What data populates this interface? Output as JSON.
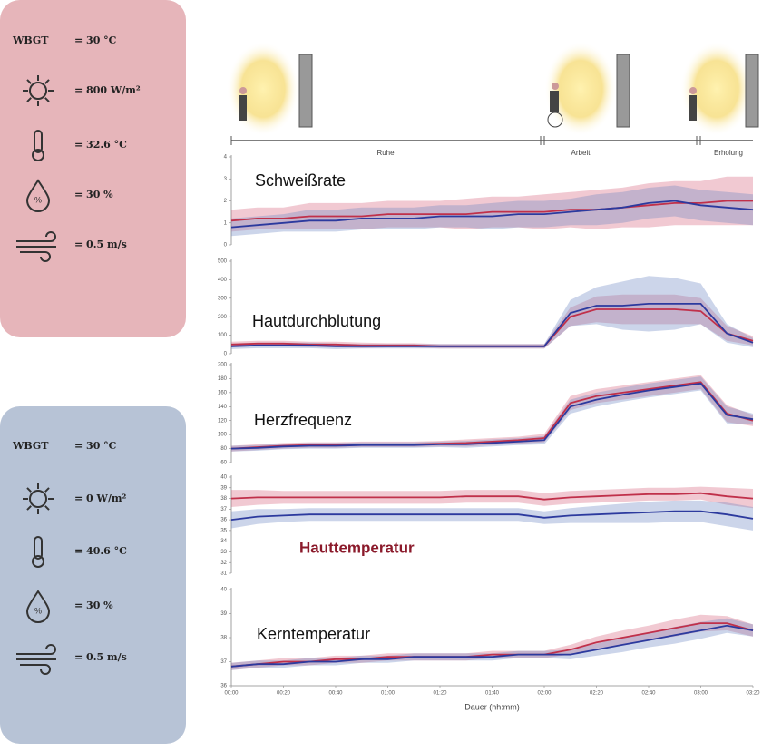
{
  "conditions": [
    {
      "rows": [
        {
          "label": "WBGT",
          "value": "= 30 °C"
        },
        {
          "value": "= 800 W/m²"
        },
        {
          "value": "= 32.6 °C"
        },
        {
          "value": "= 30 %"
        },
        {
          "value": "= 0.5 m/s"
        }
      ]
    },
    {
      "rows": [
        {
          "label": "WBGT",
          "value": "= 30 °C"
        },
        {
          "value": "= 0 W/m²"
        },
        {
          "value": "= 40.6 °C"
        },
        {
          "value": "= 30 %"
        },
        {
          "value": "= 0.5 m/s"
        }
      ]
    }
  ],
  "timeline": {
    "phases": [
      "Ruhe",
      "Arbeit",
      "Erholung"
    ]
  },
  "chart_data": [
    {
      "type": "line",
      "title": "Schweißrate",
      "x": [
        0,
        10,
        20,
        30,
        40,
        50,
        60,
        70,
        80,
        90,
        100,
        110,
        120,
        130,
        140,
        150,
        160,
        170,
        180,
        190,
        200
      ],
      "xlim": [
        0,
        200
      ],
      "ylim": [
        0,
        4
      ],
      "yticks": [
        0,
        1,
        2,
        3,
        4
      ],
      "series": [
        {
          "color": "#c0304a",
          "band_color": "rgba(214,100,125,0.35)",
          "values": [
            1.1,
            1.2,
            1.2,
            1.3,
            1.3,
            1.3,
            1.4,
            1.4,
            1.4,
            1.4,
            1.5,
            1.5,
            1.5,
            1.6,
            1.6,
            1.7,
            1.8,
            1.9,
            1.9,
            2.0,
            2.0
          ],
          "sd": [
            0.5,
            0.5,
            0.5,
            0.6,
            0.6,
            0.6,
            0.6,
            0.6,
            0.6,
            0.7,
            0.7,
            0.7,
            0.8,
            0.8,
            0.9,
            0.9,
            1.0,
            1.0,
            1.0,
            1.1,
            1.1
          ]
        },
        {
          "color": "#2c3a9e",
          "band_color": "rgba(110,135,195,0.35)",
          "values": [
            0.8,
            0.9,
            1.0,
            1.1,
            1.1,
            1.2,
            1.2,
            1.2,
            1.3,
            1.3,
            1.3,
            1.4,
            1.4,
            1.5,
            1.6,
            1.7,
            1.9,
            2.0,
            1.8,
            1.7,
            1.6
          ],
          "sd": [
            0.4,
            0.4,
            0.4,
            0.5,
            0.5,
            0.5,
            0.5,
            0.5,
            0.5,
            0.5,
            0.6,
            0.6,
            0.6,
            0.6,
            0.7,
            0.7,
            0.7,
            0.7,
            0.7,
            0.7,
            0.7
          ]
        }
      ]
    },
    {
      "type": "line",
      "title": "Hautdurchblutung",
      "x": [
        0,
        10,
        20,
        30,
        40,
        50,
        60,
        70,
        80,
        90,
        100,
        110,
        120,
        130,
        140,
        150,
        160,
        170,
        180,
        190,
        200
      ],
      "xlim": [
        0,
        200
      ],
      "ylim": [
        0,
        500
      ],
      "yticks": [
        0,
        100,
        200,
        300,
        400,
        500
      ],
      "series": [
        {
          "color": "#c0304a",
          "band_color": "rgba(214,100,125,0.35)",
          "values": [
            50,
            55,
            55,
            50,
            50,
            45,
            45,
            45,
            40,
            40,
            40,
            40,
            40,
            200,
            240,
            240,
            240,
            240,
            230,
            110,
            70
          ],
          "sd": [
            15,
            15,
            15,
            15,
            15,
            15,
            12,
            12,
            12,
            12,
            12,
            12,
            12,
            50,
            70,
            80,
            80,
            80,
            70,
            40,
            25
          ]
        },
        {
          "color": "#2c3a9e",
          "band_color": "rgba(110,135,195,0.35)",
          "values": [
            40,
            45,
            45,
            45,
            40,
            40,
            40,
            40,
            40,
            40,
            40,
            40,
            40,
            220,
            260,
            260,
            270,
            270,
            270,
            110,
            60
          ],
          "sd": [
            15,
            15,
            15,
            15,
            15,
            12,
            12,
            12,
            12,
            12,
            12,
            12,
            12,
            70,
            100,
            130,
            150,
            140,
            110,
            50,
            25
          ]
        }
      ]
    },
    {
      "type": "line",
      "title": "Herzfrequenz",
      "x": [
        0,
        10,
        20,
        30,
        40,
        50,
        60,
        70,
        80,
        90,
        100,
        110,
        120,
        130,
        140,
        150,
        160,
        170,
        180,
        190,
        200
      ],
      "xlim": [
        0,
        200
      ],
      "ylim": [
        60,
        200
      ],
      "yticks": [
        60,
        80,
        100,
        120,
        140,
        160,
        180,
        200
      ],
      "series": [
        {
          "color": "#c0304a",
          "band_color": "rgba(214,100,125,0.35)",
          "values": [
            80,
            82,
            84,
            85,
            85,
            86,
            86,
            86,
            87,
            88,
            90,
            92,
            95,
            145,
            155,
            160,
            165,
            170,
            175,
            130,
            120
          ],
          "sd": [
            4,
            4,
            4,
            4,
            4,
            4,
            4,
            4,
            4,
            5,
            5,
            5,
            6,
            10,
            10,
            10,
            10,
            10,
            10,
            12,
            8
          ]
        },
        {
          "color": "#2c3a9e",
          "band_color": "rgba(110,135,195,0.35)",
          "values": [
            80,
            81,
            83,
            84,
            84,
            85,
            85,
            85,
            86,
            86,
            88,
            90,
            92,
            140,
            150,
            157,
            163,
            168,
            173,
            128,
            122
          ],
          "sd": [
            4,
            4,
            4,
            4,
            4,
            4,
            4,
            4,
            4,
            5,
            5,
            5,
            6,
            10,
            10,
            10,
            10,
            10,
            10,
            12,
            8
          ]
        }
      ]
    },
    {
      "type": "line",
      "title": "Hauttemperatur",
      "title_color": "#8b1a2b",
      "x": [
        0,
        10,
        20,
        30,
        40,
        50,
        60,
        70,
        80,
        90,
        100,
        110,
        120,
        130,
        140,
        150,
        160,
        170,
        180,
        190,
        200
      ],
      "xlim": [
        0,
        200
      ],
      "ylim": [
        31,
        40
      ],
      "yticks": [
        31,
        32,
        33,
        34,
        35,
        36,
        37,
        38,
        39,
        40
      ],
      "series": [
        {
          "color": "#c0304a",
          "band_color": "rgba(214,100,125,0.35)",
          "values": [
            38.0,
            38.1,
            38.1,
            38.1,
            38.1,
            38.1,
            38.1,
            38.1,
            38.1,
            38.2,
            38.2,
            38.2,
            37.9,
            38.1,
            38.2,
            38.3,
            38.4,
            38.4,
            38.5,
            38.2,
            38.0
          ],
          "sd": [
            0.8,
            0.7,
            0.6,
            0.6,
            0.6,
            0.6,
            0.6,
            0.6,
            0.6,
            0.6,
            0.6,
            0.6,
            0.6,
            0.6,
            0.6,
            0.6,
            0.6,
            0.6,
            0.6,
            0.8,
            0.9
          ]
        },
        {
          "color": "#2c3a9e",
          "band_color": "rgba(110,135,195,0.35)",
          "values": [
            36.0,
            36.3,
            36.4,
            36.5,
            36.5,
            36.5,
            36.5,
            36.5,
            36.5,
            36.5,
            36.5,
            36.5,
            36.2,
            36.4,
            36.5,
            36.6,
            36.7,
            36.8,
            36.8,
            36.5,
            36.1
          ],
          "sd": [
            0.8,
            0.7,
            0.6,
            0.6,
            0.6,
            0.6,
            0.6,
            0.6,
            0.6,
            0.6,
            0.6,
            0.6,
            0.6,
            0.7,
            0.8,
            0.9,
            1.0,
            1.0,
            1.0,
            1.1,
            1.1
          ]
        }
      ]
    },
    {
      "type": "line",
      "title": "Kerntemperatur",
      "xlabel": "Dauer (hh:mm)",
      "x": [
        0,
        10,
        20,
        30,
        40,
        50,
        60,
        70,
        80,
        90,
        100,
        110,
        120,
        130,
        140,
        150,
        160,
        170,
        180,
        190,
        200
      ],
      "xlim": [
        0,
        200
      ],
      "xticks": [
        {
          "value": 0,
          "label": "00:00"
        },
        {
          "value": 20,
          "label": "00:20"
        },
        {
          "value": 40,
          "label": "00:40"
        },
        {
          "value": 60,
          "label": "01:00"
        },
        {
          "value": 80,
          "label": "01:20"
        },
        {
          "value": 100,
          "label": "01:40"
        },
        {
          "value": 120,
          "label": "02:00"
        },
        {
          "value": 140,
          "label": "02:20"
        },
        {
          "value": 160,
          "label": "02:40"
        },
        {
          "value": 180,
          "label": "03:00"
        },
        {
          "value": 200,
          "label": "03:20"
        }
      ],
      "ylim": [
        36,
        40
      ],
      "yticks": [
        36,
        37,
        38,
        39,
        40
      ],
      "series": [
        {
          "color": "#c0304a",
          "band_color": "rgba(214,100,125,0.35)",
          "values": [
            36.8,
            36.9,
            37.0,
            37.0,
            37.1,
            37.1,
            37.2,
            37.2,
            37.2,
            37.2,
            37.3,
            37.3,
            37.3,
            37.5,
            37.8,
            38.0,
            38.2,
            38.4,
            38.6,
            38.6,
            38.3
          ],
          "sd": [
            0.15,
            0.15,
            0.15,
            0.15,
            0.15,
            0.15,
            0.15,
            0.15,
            0.15,
            0.15,
            0.15,
            0.15,
            0.15,
            0.2,
            0.25,
            0.3,
            0.3,
            0.35,
            0.35,
            0.3,
            0.25
          ]
        },
        {
          "color": "#2c3a9e",
          "band_color": "rgba(110,135,195,0.35)",
          "values": [
            36.8,
            36.9,
            36.9,
            37.0,
            37.0,
            37.1,
            37.1,
            37.2,
            37.2,
            37.2,
            37.2,
            37.3,
            37.3,
            37.3,
            37.5,
            37.7,
            37.9,
            38.1,
            38.3,
            38.5,
            38.3
          ],
          "sd": [
            0.15,
            0.15,
            0.15,
            0.15,
            0.15,
            0.15,
            0.15,
            0.15,
            0.15,
            0.15,
            0.15,
            0.15,
            0.15,
            0.2,
            0.25,
            0.3,
            0.3,
            0.35,
            0.35,
            0.3,
            0.25
          ]
        }
      ]
    }
  ]
}
